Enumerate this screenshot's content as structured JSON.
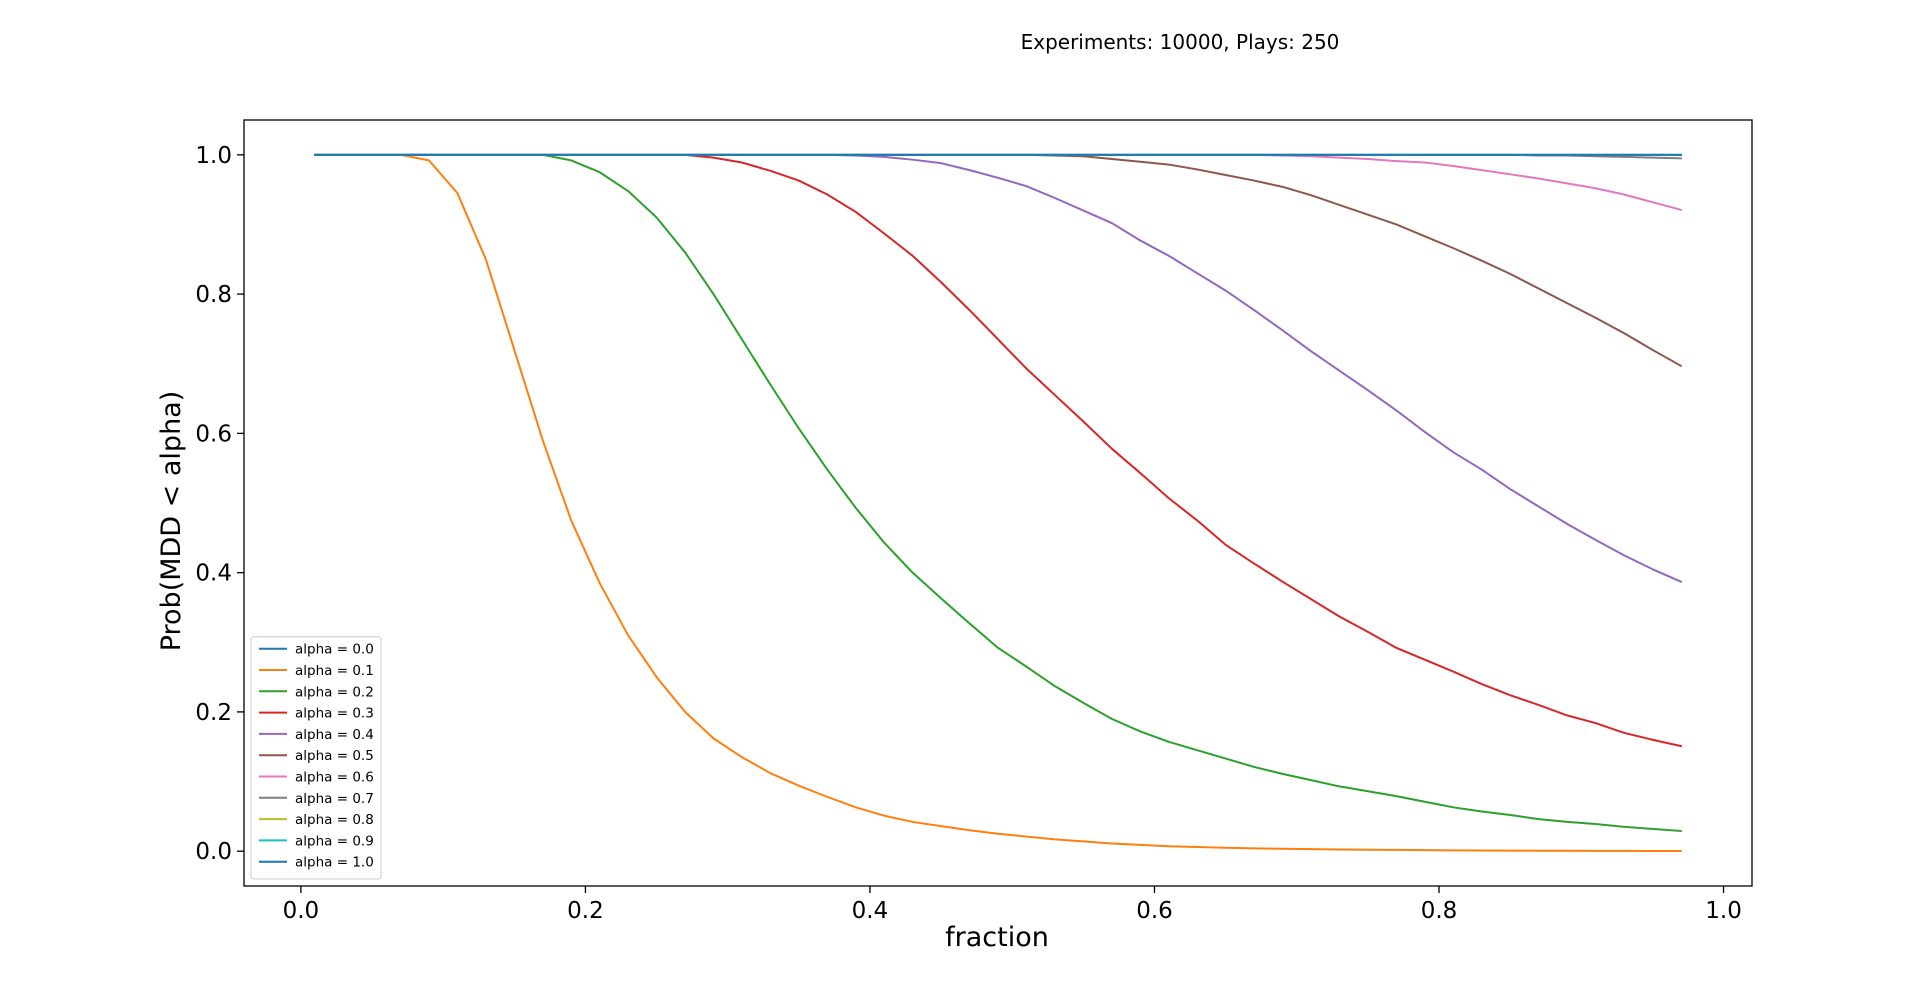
{
  "figure": {
    "title": "Experiments: 10000, Plays: 250"
  },
  "chart_data": {
    "type": "line",
    "title": "Experiments: 10000, Plays: 250",
    "xlabel": "fraction",
    "ylabel": "Prob(MDD < alpha)",
    "xlim": [
      -0.04,
      1.02
    ],
    "ylim": [
      -0.05,
      1.05
    ],
    "xticks": [
      0.0,
      0.2,
      0.4,
      0.6,
      0.8,
      1.0
    ],
    "xtick_labels": [
      "0.0",
      "0.2",
      "0.4",
      "0.6",
      "0.8",
      "1.0"
    ],
    "yticks": [
      0.0,
      0.2,
      0.4,
      0.6,
      0.8,
      1.0
    ],
    "ytick_labels": [
      "0.0",
      "0.2",
      "0.4",
      "0.6",
      "0.8",
      "1.0"
    ],
    "grid": false,
    "legend_position": "lower left",
    "x": [
      0.01,
      0.03,
      0.05,
      0.07,
      0.09,
      0.11,
      0.13,
      0.15,
      0.17,
      0.19,
      0.21,
      0.23,
      0.25,
      0.27,
      0.29,
      0.31,
      0.33,
      0.35,
      0.37,
      0.39,
      0.41,
      0.43,
      0.45,
      0.47,
      0.49,
      0.51,
      0.53,
      0.55,
      0.57,
      0.59,
      0.61,
      0.63,
      0.65,
      0.67,
      0.69,
      0.71,
      0.73,
      0.75,
      0.77,
      0.79,
      0.81,
      0.83,
      0.85,
      0.87,
      0.89,
      0.91,
      0.93,
      0.95,
      0.97
    ],
    "series": [
      {
        "name": "alpha = 0.0",
        "color": "#1f77b4",
        "values": [
          1,
          1,
          1,
          1,
          1,
          1,
          1,
          1,
          1,
          1,
          1,
          1,
          1,
          1,
          1,
          1,
          1,
          1,
          1,
          1,
          1,
          1,
          1,
          1,
          1,
          1,
          1,
          1,
          1,
          1,
          1,
          1,
          1,
          1,
          1,
          1,
          1,
          1,
          1,
          1,
          1,
          1,
          1,
          1,
          1,
          1,
          1,
          1,
          1
        ]
      },
      {
        "name": "alpha = 0.1",
        "color": "#ff7f0e",
        "values": [
          1.0,
          1.0,
          1.0,
          1.0,
          0.992,
          0.945,
          0.85,
          0.72,
          0.59,
          0.475,
          0.385,
          0.31,
          0.25,
          0.2,
          0.162,
          0.135,
          0.112,
          0.094,
          0.078,
          0.063,
          0.051,
          0.042,
          0.036,
          0.03,
          0.025,
          0.021,
          0.017,
          0.014,
          0.011,
          0.009,
          0.007,
          0.006,
          0.005,
          0.004,
          0.0035,
          0.003,
          0.0025,
          0.002,
          0.0018,
          0.0015,
          0.0012,
          0.001,
          0.0008,
          0.0007,
          0.0006,
          0.0005,
          0.0004,
          0.0003,
          0.0002
        ]
      },
      {
        "name": "alpha = 0.2",
        "color": "#2ca02c",
        "values": [
          1.0,
          1.0,
          1.0,
          1.0,
          1.0,
          1.0,
          1.0,
          1.0,
          1.0,
          0.992,
          0.975,
          0.948,
          0.91,
          0.86,
          0.8,
          0.735,
          0.67,
          0.607,
          0.548,
          0.493,
          0.443,
          0.4,
          0.363,
          0.327,
          0.292,
          0.265,
          0.237,
          0.213,
          0.19,
          0.172,
          0.157,
          0.145,
          0.133,
          0.121,
          0.111,
          0.102,
          0.093,
          0.086,
          0.079,
          0.071,
          0.063,
          0.057,
          0.052,
          0.046,
          0.042,
          0.039,
          0.035,
          0.032,
          0.029
        ]
      },
      {
        "name": "alpha = 0.3",
        "color": "#d62728",
        "values": [
          1.0,
          1.0,
          1.0,
          1.0,
          1.0,
          1.0,
          1.0,
          1.0,
          1.0,
          1.0,
          1.0,
          1.0,
          1.0,
          1.0,
          0.996,
          0.989,
          0.977,
          0.963,
          0.943,
          0.918,
          0.887,
          0.855,
          0.817,
          0.777,
          0.735,
          0.693,
          0.655,
          0.617,
          0.578,
          0.543,
          0.507,
          0.475,
          0.44,
          0.413,
          0.387,
          0.362,
          0.337,
          0.315,
          0.292,
          0.275,
          0.258,
          0.24,
          0.224,
          0.21,
          0.195,
          0.184,
          0.17,
          0.16,
          0.151
        ]
      },
      {
        "name": "alpha = 0.4",
        "color": "#9467bd",
        "values": [
          1.0,
          1.0,
          1.0,
          1.0,
          1.0,
          1.0,
          1.0,
          1.0,
          1.0,
          1.0,
          1.0,
          1.0,
          1.0,
          1.0,
          1.0,
          1.0,
          1.0,
          1.0,
          1.0,
          0.999,
          0.997,
          0.993,
          0.988,
          0.978,
          0.967,
          0.955,
          0.938,
          0.92,
          0.902,
          0.877,
          0.855,
          0.83,
          0.805,
          0.777,
          0.748,
          0.718,
          0.69,
          0.662,
          0.633,
          0.602,
          0.573,
          0.548,
          0.52,
          0.495,
          0.47,
          0.447,
          0.425,
          0.405,
          0.387
        ]
      },
      {
        "name": "alpha = 0.5",
        "color": "#8c564b",
        "values": [
          1.0,
          1.0,
          1.0,
          1.0,
          1.0,
          1.0,
          1.0,
          1.0,
          1.0,
          1.0,
          1.0,
          1.0,
          1.0,
          1.0,
          1.0,
          1.0,
          1.0,
          1.0,
          1.0,
          1.0,
          1.0,
          1.0,
          1.0,
          1.0,
          1.0,
          1.0,
          0.999,
          0.998,
          0.994,
          0.99,
          0.986,
          0.979,
          0.971,
          0.963,
          0.954,
          0.942,
          0.928,
          0.914,
          0.9,
          0.883,
          0.866,
          0.848,
          0.829,
          0.808,
          0.787,
          0.766,
          0.744,
          0.72,
          0.697
        ]
      },
      {
        "name": "alpha = 0.6",
        "color": "#e377c2",
        "values": [
          1.0,
          1.0,
          1.0,
          1.0,
          1.0,
          1.0,
          1.0,
          1.0,
          1.0,
          1.0,
          1.0,
          1.0,
          1.0,
          1.0,
          1.0,
          1.0,
          1.0,
          1.0,
          1.0,
          1.0,
          1.0,
          1.0,
          1.0,
          1.0,
          1.0,
          1.0,
          1.0,
          1.0,
          1.0,
          1.0,
          1.0,
          1.0,
          1.0,
          1.0,
          0.999,
          0.998,
          0.996,
          0.994,
          0.991,
          0.989,
          0.984,
          0.978,
          0.972,
          0.966,
          0.959,
          0.952,
          0.943,
          0.932,
          0.921
        ]
      },
      {
        "name": "alpha = 0.7",
        "color": "#7f7f7f",
        "values": [
          1.0,
          1.0,
          1.0,
          1.0,
          1.0,
          1.0,
          1.0,
          1.0,
          1.0,
          1.0,
          1.0,
          1.0,
          1.0,
          1.0,
          1.0,
          1.0,
          1.0,
          1.0,
          1.0,
          1.0,
          1.0,
          1.0,
          1.0,
          1.0,
          1.0,
          1.0,
          1.0,
          1.0,
          1.0,
          1.0,
          1.0,
          1.0,
          1.0,
          1.0,
          1.0,
          1.0,
          1.0,
          1.0,
          1.0,
          1.0,
          1.0,
          1.0,
          1.0,
          0.999,
          0.999,
          0.998,
          0.997,
          0.996,
          0.995
        ]
      },
      {
        "name": "alpha = 0.8",
        "color": "#bcbd22",
        "values": [
          1,
          1,
          1,
          1,
          1,
          1,
          1,
          1,
          1,
          1,
          1,
          1,
          1,
          1,
          1,
          1,
          1,
          1,
          1,
          1,
          1,
          1,
          1,
          1,
          1,
          1,
          1,
          1,
          1,
          1,
          1,
          1,
          1,
          1,
          1,
          1,
          1,
          1,
          1,
          1,
          1,
          1,
          1,
          1,
          1,
          1,
          1,
          1,
          1
        ]
      },
      {
        "name": "alpha = 0.9",
        "color": "#17becf",
        "values": [
          1,
          1,
          1,
          1,
          1,
          1,
          1,
          1,
          1,
          1,
          1,
          1,
          1,
          1,
          1,
          1,
          1,
          1,
          1,
          1,
          1,
          1,
          1,
          1,
          1,
          1,
          1,
          1,
          1,
          1,
          1,
          1,
          1,
          1,
          1,
          1,
          1,
          1,
          1,
          1,
          1,
          1,
          1,
          1,
          1,
          1,
          1,
          1,
          1
        ]
      },
      {
        "name": "alpha = 1.0",
        "color": "#1f77b4",
        "values": [
          1,
          1,
          1,
          1,
          1,
          1,
          1,
          1,
          1,
          1,
          1,
          1,
          1,
          1,
          1,
          1,
          1,
          1,
          1,
          1,
          1,
          1,
          1,
          1,
          1,
          1,
          1,
          1,
          1,
          1,
          1,
          1,
          1,
          1,
          1,
          1,
          1,
          1,
          1,
          1,
          1,
          1,
          1,
          1,
          1,
          1,
          1,
          1,
          1
        ]
      }
    ]
  }
}
